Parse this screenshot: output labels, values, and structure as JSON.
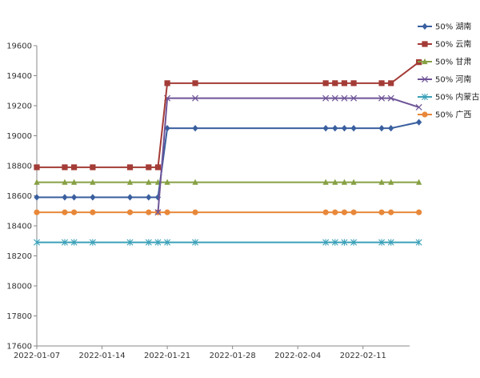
{
  "chart_data": {
    "type": "line",
    "title": "",
    "xlabel": "",
    "ylabel": "",
    "ylim": [
      17600,
      19600
    ],
    "y_ticks": [
      17600,
      17800,
      18000,
      18200,
      18400,
      18600,
      18800,
      19000,
      19200,
      19400,
      19600
    ],
    "x_ticks": [
      "2022-01-07",
      "2022-01-14",
      "2022-01-21",
      "2022-01-28",
      "2022-02-04",
      "2022-02-11"
    ],
    "xlim": [
      "2022-01-07",
      "2022-02-16"
    ],
    "grid": false,
    "legend_position": "right",
    "x": [
      "2022-01-07",
      "2022-01-10",
      "2022-01-11",
      "2022-01-13",
      "2022-01-17",
      "2022-01-19",
      "2022-01-20",
      "2022-01-21",
      "2022-01-24",
      "2022-02-07",
      "2022-02-08",
      "2022-02-09",
      "2022-02-10",
      "2022-02-13",
      "2022-02-14",
      "2022-02-17"
    ],
    "series": [
      {
        "name": "50% 湖南",
        "color": "#3a5f9f",
        "marker": "diamond",
        "values": [
          18590,
          18590,
          18590,
          18590,
          18590,
          18590,
          18590,
          19050,
          19050,
          19050,
          19050,
          19050,
          19050,
          19050,
          19050,
          19090
        ]
      },
      {
        "name": "50% 云南",
        "color": "#a33b36",
        "marker": "square",
        "values": [
          18790,
          18790,
          18790,
          18790,
          18790,
          18790,
          18790,
          19350,
          19350,
          19350,
          19350,
          19350,
          19350,
          19350,
          19350,
          19490
        ]
      },
      {
        "name": "50% 甘肃",
        "color": "#86a044",
        "marker": "triangle",
        "values": [
          18690,
          18690,
          18690,
          18690,
          18690,
          18690,
          18690,
          18690,
          18690,
          18690,
          18690,
          18690,
          18690,
          18690,
          18690,
          18690
        ]
      },
      {
        "name": "50% 河南",
        "color": "#6e5497",
        "marker": "x",
        "values": [
          null,
          null,
          null,
          null,
          null,
          null,
          18490,
          19250,
          19250,
          19250,
          19250,
          19250,
          19250,
          19250,
          19250,
          19190
        ]
      },
      {
        "name": "50% 内蒙古",
        "color": "#3aa0b8",
        "marker": "asterisk",
        "values": [
          18290,
          18290,
          18290,
          18290,
          18290,
          18290,
          18290,
          18290,
          18290,
          18290,
          18290,
          18290,
          18290,
          18290,
          18290,
          18290
        ]
      },
      {
        "name": "50% 广西",
        "color": "#e8883a",
        "marker": "circle",
        "values": [
          18490,
          18490,
          18490,
          18490,
          18490,
          18490,
          18490,
          18490,
          18490,
          18490,
          18490,
          18490,
          18490,
          18490,
          18490,
          18490
        ]
      }
    ]
  }
}
